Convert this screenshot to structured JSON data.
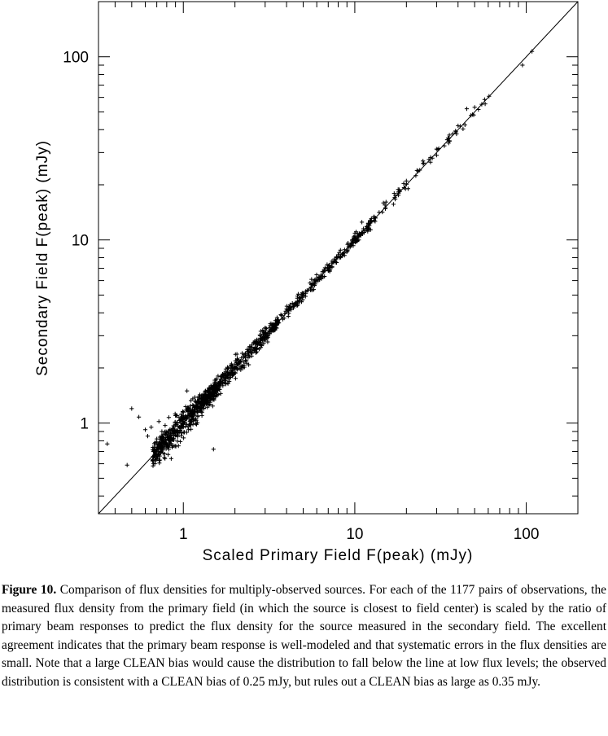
{
  "chart_data": {
    "type": "scatter",
    "title": "",
    "xlabel": "Scaled Primary Field F(peak) (mJy)",
    "ylabel": "Secondary Field F(peak) (mJy)",
    "xscale": "log",
    "yscale": "log",
    "xlim": [
      0.32,
      200
    ],
    "ylim": [
      0.32,
      200
    ],
    "x_ticks": [
      1,
      10,
      100
    ],
    "x_tick_labels": [
      "1",
      "10",
      "100"
    ],
    "y_ticks": [
      1,
      10,
      100
    ],
    "y_tick_labels": [
      "1",
      "10",
      "100"
    ],
    "marker": "plus",
    "n_points": 1177,
    "reference_line": {
      "label": "",
      "slope": 1,
      "intercept": 0,
      "from": [
        0.32,
        0.32
      ],
      "to": [
        200,
        200
      ]
    },
    "grid": false,
    "legend": "none",
    "sample_points": [
      [
        0.36,
        0.77
      ],
      [
        0.47,
        0.59
      ],
      [
        0.5,
        1.2
      ],
      [
        0.55,
        1.08
      ],
      [
        0.6,
        0.92
      ],
      [
        0.62,
        0.85
      ],
      [
        0.65,
        0.95
      ],
      [
        0.7,
        0.82
      ],
      [
        0.72,
        1.02
      ],
      [
        0.75,
        0.9
      ],
      [
        0.8,
        0.88
      ],
      [
        0.85,
        0.64
      ],
      [
        0.9,
        1.1
      ],
      [
        0.95,
        0.95
      ],
      [
        1.0,
        1.05
      ],
      [
        1.05,
        1.5
      ],
      [
        1.1,
        1.1
      ],
      [
        1.2,
        1.2
      ],
      [
        1.3,
        1.25
      ],
      [
        1.5,
        0.72
      ],
      [
        1.5,
        1.5
      ],
      [
        1.7,
        1.6
      ],
      [
        2.0,
        2.1
      ],
      [
        2.3,
        2.2
      ],
      [
        2.5,
        2.6
      ],
      [
        3.0,
        3.1
      ],
      [
        3.5,
        3.3
      ],
      [
        4.0,
        4.2
      ],
      [
        5.0,
        5.1
      ],
      [
        6.0,
        6.2
      ],
      [
        7.0,
        6.8
      ],
      [
        8.0,
        8.3
      ],
      [
        10.0,
        10.5
      ],
      [
        11.0,
        12.5
      ],
      [
        12.0,
        11.5
      ],
      [
        15.0,
        15.5
      ],
      [
        18.0,
        18.0
      ],
      [
        20.0,
        21.0
      ],
      [
        25.0,
        27.0
      ],
      [
        30.0,
        29.0
      ],
      [
        35.0,
        36.0
      ],
      [
        40.0,
        42.0
      ],
      [
        45.0,
        52.0
      ],
      [
        50.0,
        53.0
      ],
      [
        55.0,
        55.0
      ],
      [
        95.0,
        90.0
      ],
      [
        108.0,
        107.0
      ]
    ]
  },
  "caption": {
    "label": "Figure 10.",
    "text": "Comparison of flux densities for multiply-observed sources. For each of the 1177 pairs of observations, the measured flux density from the primary field (in which the source is closest to field center) is scaled by the ratio of primary beam responses to predict the flux density for the source measured in the secondary field. The excellent agreement indicates that the primary beam response is well-modeled and that systematic errors in the flux densities are small. Note that a large CLEAN bias would cause the distribution to fall below the line at low flux levels; the observed distribution is consistent with a CLEAN bias of 0.25 mJy, but rules out a CLEAN bias as large as 0.35 mJy."
  }
}
